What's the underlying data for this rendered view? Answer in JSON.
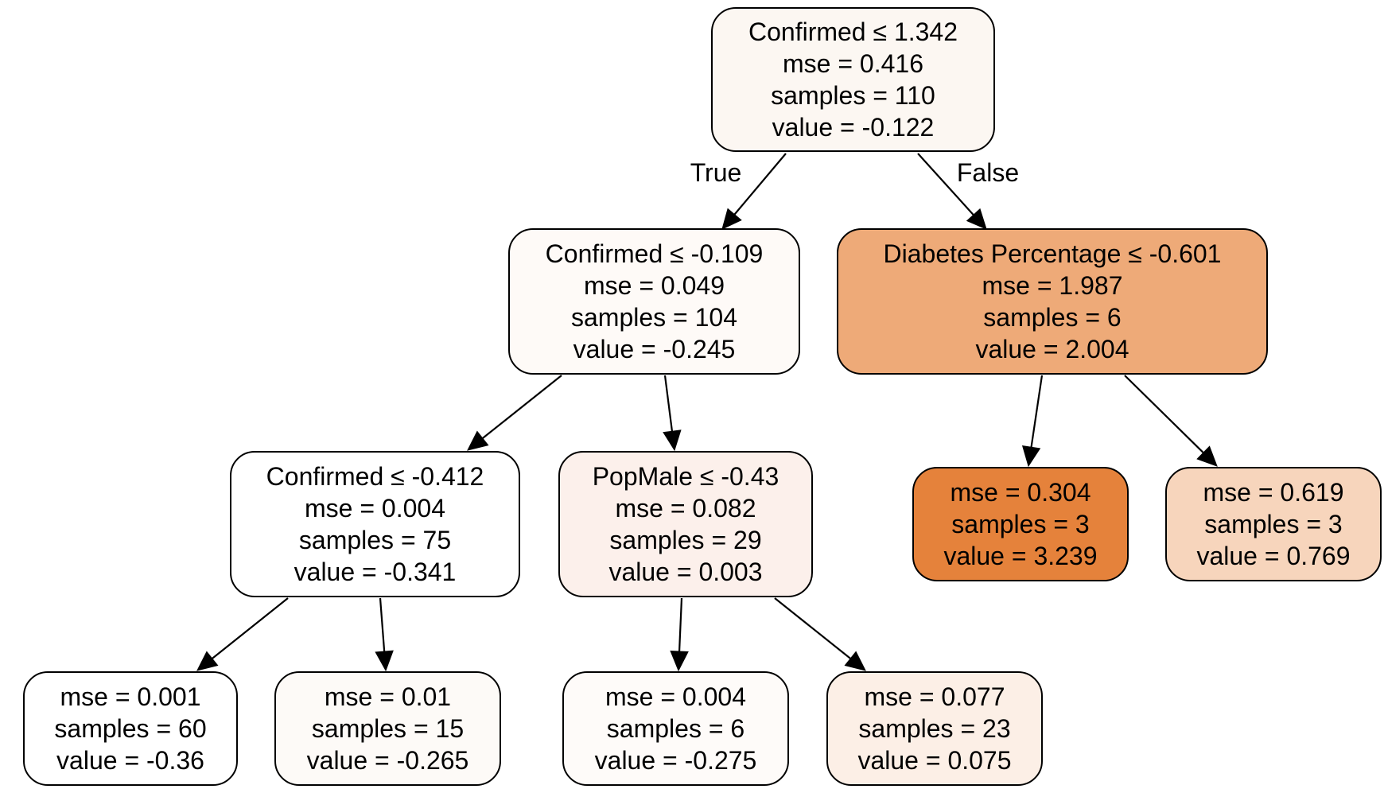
{
  "tree": {
    "nodes": [
      {
        "id": "n0",
        "fill": "#fcf7f2",
        "lines": [
          "Confirmed ≤ 1.342",
          "mse = 0.416",
          "samples = 110",
          "value = -0.122"
        ]
      },
      {
        "id": "n1",
        "fill": "#fefaf7",
        "lines": [
          "Confirmed ≤ -0.109",
          "mse = 0.049",
          "samples = 104",
          "value = -0.245"
        ]
      },
      {
        "id": "n2",
        "fill": "#eeaa78",
        "lines": [
          "Diabetes Percentage ≤ -0.601",
          "mse = 1.987",
          "samples = 6",
          "value = 2.004"
        ]
      },
      {
        "id": "n3",
        "fill": "#ffffff",
        "lines": [
          "Confirmed ≤ -0.412",
          "mse = 0.004",
          "samples = 75",
          "value = -0.341"
        ]
      },
      {
        "id": "n4",
        "fill": "#fcf0eb",
        "lines": [
          "PopMale ≤ -0.43",
          "mse = 0.082",
          "samples = 29",
          "value = 0.003"
        ]
      },
      {
        "id": "n5",
        "fill": "#e5823b",
        "lines": [
          "mse = 0.304",
          "samples = 3",
          "value = 3.239"
        ]
      },
      {
        "id": "n6",
        "fill": "#f7d5bc",
        "lines": [
          "mse = 0.619",
          "samples = 3",
          "value = 0.769"
        ]
      },
      {
        "id": "n7",
        "fill": "#ffffff",
        "lines": [
          "mse = 0.001",
          "samples = 60",
          "value = -0.36"
        ]
      },
      {
        "id": "n8",
        "fill": "#fdfaf7",
        "lines": [
          "mse = 0.01",
          "samples = 15",
          "value = -0.265"
        ]
      },
      {
        "id": "n9",
        "fill": "#fefbf9",
        "lines": [
          "mse = 0.004",
          "samples = 6",
          "value = -0.275"
        ]
      },
      {
        "id": "n10",
        "fill": "#fcefe6",
        "lines": [
          "mse = 0.077",
          "samples = 23",
          "value = 0.075"
        ]
      }
    ],
    "edges": [
      {
        "from": "n0",
        "to": "n1",
        "label": "True"
      },
      {
        "from": "n0",
        "to": "n2",
        "label": "False"
      },
      {
        "from": "n1",
        "to": "n3",
        "label": ""
      },
      {
        "from": "n1",
        "to": "n4",
        "label": ""
      },
      {
        "from": "n2",
        "to": "n5",
        "label": ""
      },
      {
        "from": "n2",
        "to": "n6",
        "label": ""
      },
      {
        "from": "n3",
        "to": "n7",
        "label": ""
      },
      {
        "from": "n3",
        "to": "n8",
        "label": ""
      },
      {
        "from": "n4",
        "to": "n9",
        "label": ""
      },
      {
        "from": "n4",
        "to": "n10",
        "label": ""
      }
    ]
  }
}
